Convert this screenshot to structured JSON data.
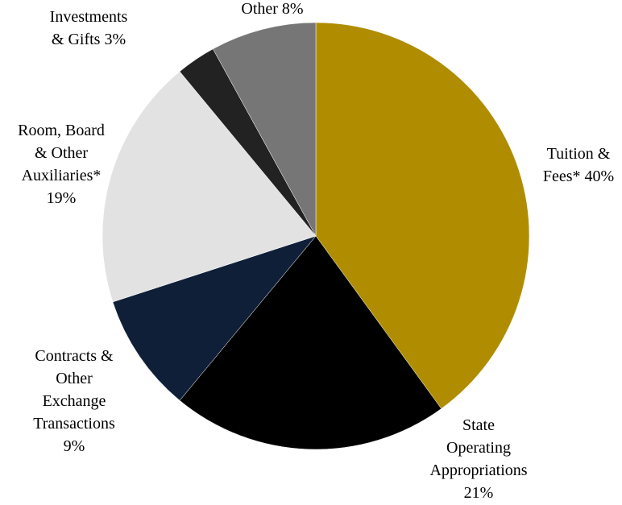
{
  "chart_data": {
    "type": "pie",
    "title": "",
    "start_angle_deg": 0,
    "direction": "clockwise",
    "slices": [
      {
        "key": "tuition",
        "value": 40,
        "color": "#B08D00",
        "label_lines": [
          "Tuition &",
          "Fees* 40%"
        ]
      },
      {
        "key": "state",
        "value": 21,
        "color": "#000000",
        "label_lines": [
          "State",
          "Operating",
          "Appropriations",
          "21%"
        ]
      },
      {
        "key": "contracts",
        "value": 9,
        "color": "#0F1F38",
        "label_lines": [
          "Contracts &",
          "Other",
          "Exchange",
          "Transactions",
          "9%"
        ]
      },
      {
        "key": "room",
        "value": 19,
        "color": "#E2E2E2",
        "label_lines": [
          "Room, Board",
          "& Other",
          "Auxiliaries*",
          "19%"
        ]
      },
      {
        "key": "investments",
        "value": 3,
        "color": "#222222",
        "label_lines": [
          "Investments",
          "& Gifts 3%"
        ]
      },
      {
        "key": "other",
        "value": 8,
        "color": "#767676",
        "label_lines": [
          "Other 8%"
        ]
      }
    ]
  }
}
